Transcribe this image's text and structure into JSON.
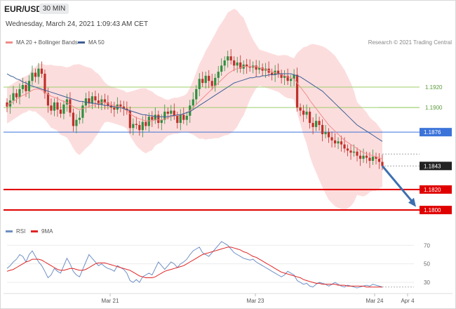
{
  "header": {
    "symbol": "EUR/USD",
    "timeframe": "30 MIN",
    "datetime": "Wednesday, March 24, 2021 1:09:43 AM CET",
    "credit": "Research © 2021 Trading Central"
  },
  "legend": {
    "ma20_label": "MA 20 + Bollinger Bands",
    "ma20_color": "#f08c8c",
    "ma50_label": "MA 50",
    "ma50_color": "#3d5f96",
    "rsi_label": "RSI",
    "rsi_color": "#6f8fc4",
    "ma9_label": "9MA",
    "ma9_color": "#e02424"
  },
  "colors": {
    "up_candle": "#2f8f3f",
    "down_candle": "#c0302a",
    "band_fill": "#fbd2d2",
    "support_line": "#e00000",
    "pivot_line": "#3b73d9",
    "resistance_line": "#9ccf6a",
    "arrow": "#3d6fb0",
    "current_tag": "#222222"
  },
  "chart_data": [
    {
      "type": "candlestick",
      "title": "EUR/USD",
      "ylim": [
        1.1787,
        1.1957
      ],
      "x_ticks": [
        "Mar 21",
        "Mar 23",
        "Mar 24",
        "Apr 4"
      ],
      "levels": [
        {
          "value": 1.192,
          "label": "1.1920",
          "kind": "resistance"
        },
        {
          "value": 1.19,
          "label": "1.1900",
          "kind": "resistance"
        },
        {
          "value": 1.1876,
          "label": "1.1876",
          "kind": "pivot"
        },
        {
          "value": 1.1843,
          "label": "1.1843",
          "kind": "current"
        },
        {
          "value": 1.182,
          "label": "1.1820",
          "kind": "support"
        },
        {
          "value": 1.18,
          "label": "1.1800",
          "kind": "support"
        }
      ],
      "close_series": [
        1.1901,
        1.1907,
        1.1914,
        1.191,
        1.1918,
        1.1922,
        1.1916,
        1.1926,
        1.1934,
        1.193,
        1.1938,
        1.1933,
        1.1914,
        1.1902,
        1.1897,
        1.1905,
        1.1898,
        1.1894,
        1.1903,
        1.1908,
        1.1895,
        1.1882,
        1.1888,
        1.189,
        1.1902,
        1.1909,
        1.1904,
        1.1911,
        1.1907,
        1.1903,
        1.1908,
        1.1905,
        1.1902,
        1.19,
        1.1898,
        1.1903,
        1.1901,
        1.1899,
        1.1897,
        1.188,
        1.1884,
        1.1883,
        1.1878,
        1.1886,
        1.1882,
        1.1891,
        1.1888,
        1.1893,
        1.1885,
        1.1888,
        1.1896,
        1.1894,
        1.1897,
        1.1892,
        1.1885,
        1.1893,
        1.1888,
        1.1892,
        1.1902,
        1.1908,
        1.1918,
        1.1928,
        1.1924,
        1.1931,
        1.1926,
        1.1921,
        1.1929,
        1.1935,
        1.1941,
        1.1946,
        1.195,
        1.1946,
        1.1941,
        1.1944,
        1.1938,
        1.1942,
        1.194,
        1.1939,
        1.1941,
        1.1937,
        1.1939,
        1.1936,
        1.1938,
        1.1934,
        1.1932,
        1.1936,
        1.1933,
        1.1929,
        1.1931,
        1.1926,
        1.1928,
        1.1932,
        1.19,
        1.1897,
        1.1893,
        1.1896,
        1.1885,
        1.1881,
        1.1887,
        1.1883,
        1.1874,
        1.1876,
        1.1871,
        1.1868,
        1.1865,
        1.1867,
        1.1864,
        1.186,
        1.1858,
        1.1856,
        1.1857,
        1.1853,
        1.185,
        1.1853,
        1.1851,
        1.1848,
        1.1852,
        1.185,
        1.1847,
        1.1843
      ],
      "ma20": [
        1.1902,
        1.1904,
        1.1906,
        1.1908,
        1.191,
        1.1912,
        1.1913,
        1.1915,
        1.1917,
        1.1918,
        1.1918,
        1.1917,
        1.1915,
        1.1913,
        1.1911,
        1.191,
        1.1909,
        1.1907,
        1.1906,
        1.1905,
        1.1903,
        1.1901,
        1.1899,
        1.1898,
        1.1899,
        1.19,
        1.1901,
        1.1902,
        1.1903,
        1.1904,
        1.1905,
        1.1905,
        1.1904,
        1.1903,
        1.1902,
        1.1901,
        1.19,
        1.1899,
        1.1897,
        1.1894,
        1.1892,
        1.189,
        1.1889,
        1.1888,
        1.1887,
        1.1887,
        1.1887,
        1.1888,
        1.1888,
        1.1888,
        1.1889,
        1.189,
        1.1891,
        1.1892,
        1.1892,
        1.1893,
        1.1894,
        1.1895,
        1.1897,
        1.19,
        1.1903,
        1.1906,
        1.1909,
        1.1912,
        1.1915,
        1.1918,
        1.1921,
        1.1924,
        1.1927,
        1.193,
        1.1933,
        1.1935,
        1.1937,
        1.1938,
        1.1939,
        1.194,
        1.194,
        1.194,
        1.194,
        1.194,
        1.1939,
        1.1938,
        1.1937,
        1.1936,
        1.1935,
        1.1934,
        1.1933,
        1.1932,
        1.1931,
        1.193,
        1.1929,
        1.1928,
        1.1924,
        1.192,
        1.1916,
        1.1912,
        1.1907,
        1.1903,
        1.1899,
        1.1895,
        1.1891,
        1.1887,
        1.1883,
        1.188,
        1.1877,
        1.1874,
        1.1871,
        1.1868,
        1.1866,
        1.1864,
        1.1862,
        1.186,
        1.1858,
        1.1856,
        1.1855,
        1.1854,
        1.1853,
        1.1852,
        1.1851,
        1.185
      ],
      "ma50": [
        1.1933,
        1.1931,
        1.193,
        1.1928,
        1.1927,
        1.1925,
        1.1924,
        1.1922,
        1.1921,
        1.192,
        1.1919,
        1.1918,
        1.1917,
        1.1916,
        1.1915,
        1.1914,
        1.1913,
        1.1912,
        1.1911,
        1.191,
        1.1909,
        1.1908,
        1.1907,
        1.1906,
        1.1906,
        1.1905,
        1.1905,
        1.1904,
        1.1904,
        1.1903,
        1.1903,
        1.1902,
        1.1902,
        1.1901,
        1.1901,
        1.19,
        1.19,
        1.1899,
        1.1898,
        1.1897,
        1.1896,
        1.1895,
        1.1894,
        1.1893,
        1.1893,
        1.1892,
        1.1892,
        1.1891,
        1.1891,
        1.1891,
        1.1891,
        1.1891,
        1.1892,
        1.1892,
        1.1893,
        1.1893,
        1.1894,
        1.1895,
        1.1896,
        1.1898,
        1.19,
        1.1902,
        1.1904,
        1.1906,
        1.1908,
        1.191,
        1.1912,
        1.1914,
        1.1916,
        1.1918,
        1.192,
        1.1922,
        1.1924,
        1.1925,
        1.1926,
        1.1927,
        1.1928,
        1.1929,
        1.1929,
        1.193,
        1.193,
        1.1931,
        1.1931,
        1.1932,
        1.1932,
        1.1932,
        1.1933,
        1.1933,
        1.1933,
        1.1933,
        1.1933,
        1.1932,
        1.1931,
        1.193,
        1.1928,
        1.1926,
        1.1924,
        1.1922,
        1.192,
        1.1918,
        1.1916,
        1.1913,
        1.191,
        1.1907,
        1.1904,
        1.1901,
        1.1898,
        1.1895,
        1.1892,
        1.1889,
        1.1886,
        1.1883,
        1.1881,
        1.1879,
        1.1877,
        1.1875,
        1.1873,
        1.1871,
        1.1869,
        1.1867
      ]
    },
    {
      "type": "line",
      "title": "RSI",
      "ylim": [
        21,
        77
      ],
      "y_ticks": [
        70,
        50,
        30
      ],
      "series": [
        {
          "name": "RSI",
          "values": [
            45,
            48,
            52,
            55,
            60,
            58,
            52,
            60,
            64,
            58,
            52,
            48,
            42,
            35,
            38,
            45,
            42,
            40,
            48,
            56,
            50,
            42,
            38,
            36,
            44,
            52,
            60,
            56,
            52,
            48,
            50,
            47,
            45,
            44,
            42,
            48,
            46,
            44,
            40,
            32,
            30,
            33,
            30,
            36,
            38,
            40,
            38,
            45,
            52,
            48,
            44,
            48,
            52,
            50,
            46,
            50,
            52,
            55,
            60,
            64,
            66,
            68,
            62,
            60,
            58,
            62,
            66,
            70,
            74,
            72,
            70,
            66,
            62,
            60,
            58,
            56,
            55,
            54,
            55,
            52,
            50,
            48,
            46,
            44,
            42,
            40,
            38,
            36,
            38,
            42,
            40,
            38,
            32,
            30,
            28,
            29,
            26,
            25,
            28,
            30,
            29,
            28,
            26,
            28,
            30,
            28,
            26,
            25,
            27,
            26,
            25,
            24,
            25,
            26,
            27,
            26,
            28,
            27,
            26,
            25
          ]
        },
        {
          "name": "9MA",
          "values": [
            42,
            43,
            44,
            46,
            48,
            50,
            52,
            53,
            55,
            55,
            55,
            54,
            52,
            50,
            48,
            46,
            44,
            43,
            43,
            44,
            45,
            45,
            44,
            43,
            43,
            44,
            46,
            48,
            50,
            51,
            51,
            51,
            50,
            49,
            48,
            47,
            46,
            45,
            44,
            43,
            41,
            39,
            37,
            36,
            35,
            35,
            35,
            36,
            38,
            40,
            42,
            43,
            44,
            45,
            46,
            47,
            48,
            50,
            52,
            54,
            56,
            58,
            60,
            61,
            62,
            63,
            64,
            65,
            66,
            67,
            68,
            68,
            67,
            66,
            65,
            63,
            62,
            60,
            58,
            57,
            55,
            53,
            51,
            49,
            47,
            45,
            43,
            41,
            40,
            39,
            38,
            37,
            36,
            35,
            33,
            32,
            31,
            30,
            29,
            29,
            28,
            28,
            28,
            28,
            28,
            27,
            27,
            27,
            26,
            26,
            26,
            26,
            26,
            26,
            25,
            25,
            25,
            25,
            25,
            25
          ]
        }
      ]
    }
  ]
}
